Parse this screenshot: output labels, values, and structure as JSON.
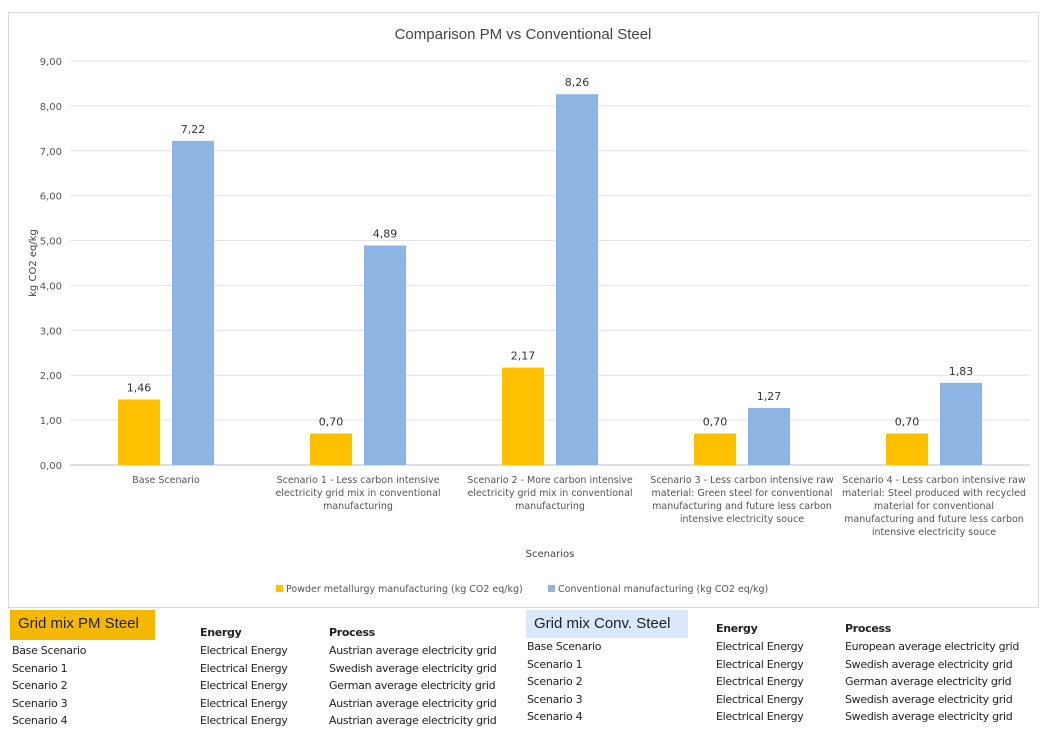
{
  "chart_data": {
    "type": "bar",
    "title": "Comparison PM vs Conventional Steel",
    "xlabel": "Scenarios",
    "ylabel": "kg CO2 eq/kg",
    "ylim": [
      0,
      9
    ],
    "yticks": [
      "0,00",
      "1,00",
      "2,00",
      "3,00",
      "4,00",
      "5,00",
      "6,00",
      "7,00",
      "8,00",
      "9,00"
    ],
    "grid": true,
    "legend": "bottom",
    "categories": [
      "Base Scenario",
      "Scenario 1 - Less carbon intensive electricity grid mix in conventional manufacturing",
      "Scenario 2 - More carbon intensive electricity grid mix in conventional manufacturing",
      "Scenario 3 - Less carbon intensive raw material: Green steel for conventional manufacturing and future less carbon intensive electricity souce",
      "Scenario 4 - Less carbon intensive raw material: Steel produced with recycled material for conventional manufacturing and future less carbon intensive electricity souce"
    ],
    "series": [
      {
        "name": "Powder metallurgy manufacturing (kg CO2 eq/kg)",
        "color": "#ffc000",
        "values": [
          1.46,
          0.7,
          2.17,
          0.7,
          0.7
        ],
        "labels": [
          "1,46",
          "0,70",
          "2,17",
          "0,70",
          "0,70"
        ]
      },
      {
        "name": "Conventional manufacturing (kg CO2 eq/kg)",
        "color": "#8eb4e3",
        "values": [
          7.22,
          4.89,
          8.26,
          1.27,
          1.83
        ],
        "labels": [
          "7,22",
          "4,89",
          "8,26",
          "1,27",
          "1,83"
        ]
      }
    ]
  },
  "pm_table": {
    "title": "Grid mix PM Steel",
    "title_color": "#f5b800",
    "headers": [
      "Energy",
      "Process"
    ],
    "rows": [
      [
        "Base Scenario",
        "Electrical Energy",
        "Austrian average electricity grid"
      ],
      [
        "Scenario 1",
        "Electrical Energy",
        "Swedish average electricity grid"
      ],
      [
        "Scenario 2",
        "Electrical Energy",
        "German average electricity grid"
      ],
      [
        "Scenario 3",
        "Electrical Energy",
        "Austrian average electricity grid"
      ],
      [
        "Scenario 4",
        "Electrical Energy",
        "Austrian average electricity grid"
      ]
    ]
  },
  "conv_table": {
    "title": "Grid mix Conv. Steel",
    "title_color": "#dae8fb",
    "headers": [
      "Energy",
      "Process"
    ],
    "rows": [
      [
        "Base Scenario",
        "Electrical Energy",
        "European average electricity grid"
      ],
      [
        "Scenario 1",
        "Electrical Energy",
        "Swedish average electricity grid"
      ],
      [
        "Scenario 2",
        "Electrical Energy",
        "German average electricity grid"
      ],
      [
        "Scenario 3",
        "Electrical Energy",
        "Swedish average electricity grid"
      ],
      [
        "Scenario 4",
        "Electrical Energy",
        "Swedish average electricity grid"
      ]
    ]
  }
}
